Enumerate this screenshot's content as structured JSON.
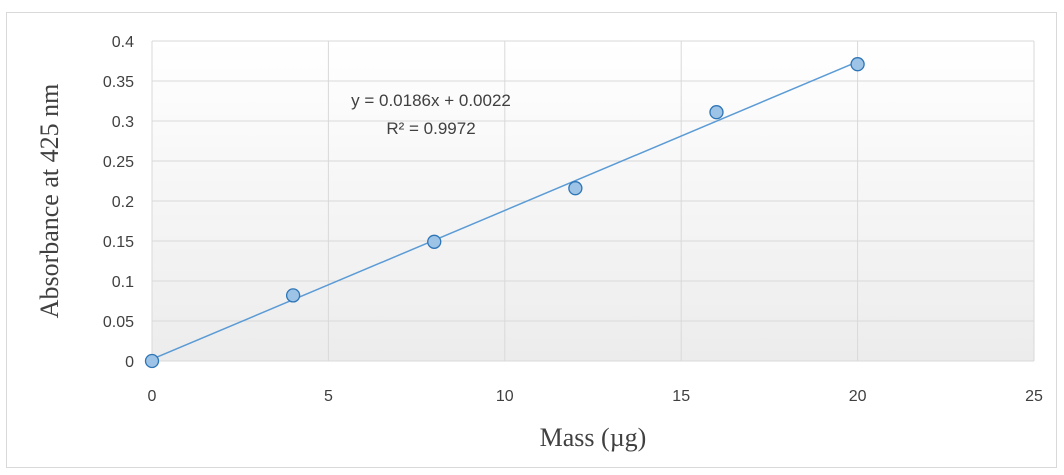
{
  "chart_data": {
    "type": "scatter",
    "title": "",
    "xlabel": "Mass (µg)",
    "ylabel": "Absorbance at 425 nm",
    "xlim": [
      0,
      25
    ],
    "ylim": [
      0,
      0.4
    ],
    "x_ticks": [
      "0",
      "5",
      "10",
      "15",
      "20",
      "25"
    ],
    "y_ticks": [
      "0",
      "0.05",
      "0.1",
      "0.15",
      "0.2",
      "0.25",
      "0.3",
      "0.35",
      "0.4"
    ],
    "grid": true,
    "legend": "none",
    "series": [
      {
        "x": [
          0,
          4,
          8,
          12,
          16,
          20
        ],
        "y": [
          0,
          0.082,
          0.149,
          0.216,
          0.311,
          0.371
        ]
      }
    ],
    "trendline": {
      "type": "linear",
      "slope": 0.0186,
      "intercept": 0.0022,
      "equation_label": "y = 0.0186x + 0.0022",
      "r2_label": "R² = 0.9972"
    },
    "colors": {
      "marker_fill": "#9dc3e6",
      "marker_stroke": "#2e75b6",
      "trendline": "#5b9bd5",
      "grid": "#d9d9d9",
      "text": "#404040"
    }
  }
}
